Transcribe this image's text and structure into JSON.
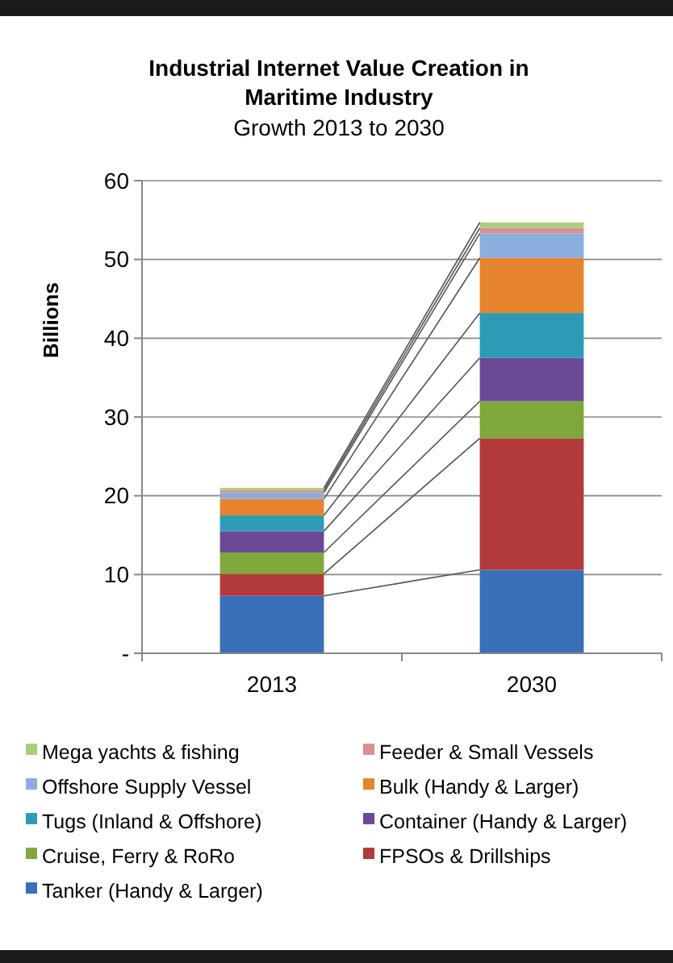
{
  "chart_data": {
    "type": "bar",
    "stacked": true,
    "title": "Industrial Internet Value Creation in Maritime Industry",
    "subtitle": "Growth 2013 to 2030",
    "ylabel": "Billions",
    "categories": [
      "2013",
      "2030"
    ],
    "series": [
      {
        "name": "Tanker (Handy & Larger)",
        "color": "#3a6fba",
        "values": [
          7.3,
          10.6
        ]
      },
      {
        "name": "FPSOs & Drillships",
        "color": "#b23a3a",
        "values": [
          2.8,
          16.7
        ]
      },
      {
        "name": "Cruise, Ferry & RoRo",
        "color": "#7fa83a",
        "values": [
          2.7,
          4.7
        ]
      },
      {
        "name": "Container (Handy & Larger)",
        "color": "#6a4a96",
        "values": [
          2.7,
          5.5
        ]
      },
      {
        "name": "Tugs (Inland & Offshore)",
        "color": "#2d9bb5",
        "values": [
          2.0,
          5.7
        ]
      },
      {
        "name": "Bulk (Handy & Larger)",
        "color": "#e6842e",
        "values": [
          2.1,
          7.0
        ]
      },
      {
        "name": "Offshore Supply Vessel",
        "color": "#8aaede",
        "values": [
          0.8,
          3.1
        ]
      },
      {
        "name": "Feeder & Small Vessels",
        "color": "#d99090",
        "values": [
          0.3,
          0.7
        ]
      },
      {
        "name": "Mega yachts & fishing",
        "color": "#a8cf7a",
        "values": [
          0.3,
          0.7
        ]
      }
    ],
    "ylim": [
      0,
      60
    ],
    "yticks": [
      {
        "value": 0,
        "label": "-"
      },
      10,
      20,
      30,
      40,
      50,
      60
    ],
    "grid": "y",
    "legend": "bottom"
  }
}
